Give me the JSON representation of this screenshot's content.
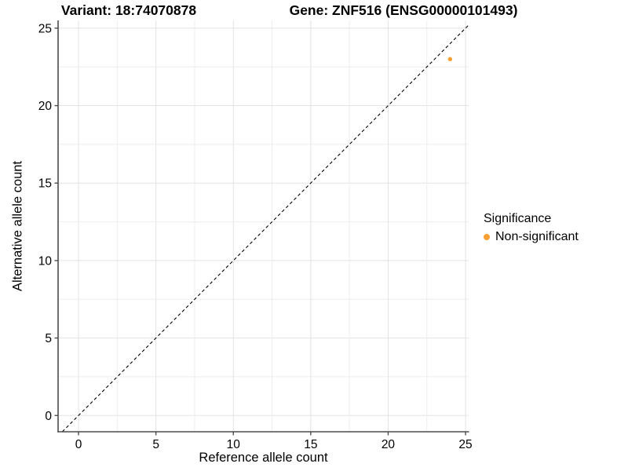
{
  "chart_data": {
    "type": "scatter",
    "title_left": "Variant: 18:74070878",
    "title_right": "Gene: ZNF516 (ENSG00000101493)",
    "xlabel": "Reference allele count",
    "ylabel": "Alternative allele count",
    "xlim": [
      -1.32,
      25.2
    ],
    "ylim": [
      -1.05,
      25.5
    ],
    "x_ticks": [
      0,
      5,
      10,
      15,
      20,
      25
    ],
    "y_ticks": [
      0,
      5,
      10,
      15,
      20,
      25
    ],
    "grid": true,
    "grid_interval": 2.5,
    "grid_major_interval": 5,
    "abline": {
      "slope": 1,
      "intercept": 0,
      "style": "dashed",
      "color": "#000000"
    },
    "series": [
      {
        "name": "Non-significant",
        "color": "#FAA032",
        "points": [
          {
            "x": 24,
            "y": 23
          }
        ]
      }
    ],
    "legend": {
      "title": "Significance",
      "position": "right",
      "entries": [
        {
          "label": "Non-significant",
          "color": "#FAA032"
        }
      ]
    },
    "colors": {
      "grid_major": "#E3E3E3",
      "grid_minor": "#EDEDED",
      "axis": "#4D4D4D",
      "text": "#000000"
    }
  }
}
